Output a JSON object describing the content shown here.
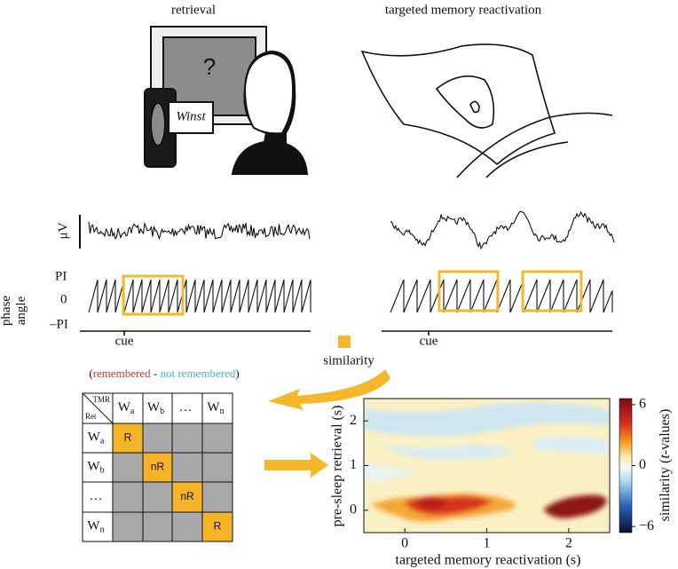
{
  "panels": {
    "retrieval": {
      "title": "retrieval",
      "screen_symbol": "?",
      "word": "Winst"
    },
    "tmr": {
      "title": "targeted memory reactivation"
    }
  },
  "eeg": {
    "amplitude_unit": "μV",
    "phase_label": [
      "phase",
      "angle"
    ],
    "phase_ticks": [
      "PI",
      "0",
      "–PI"
    ],
    "cue_left": "cue",
    "cue_right": "cue"
  },
  "similarity_label": "similarity",
  "legend": {
    "open": "(",
    "remembered": "remembered",
    "separator": " - ",
    "not_remembered": "not remembered",
    "close": ")"
  },
  "matrix": {
    "corner_top": "TMR",
    "corner_bottom": "Ret",
    "columns": [
      {
        "base": "W",
        "sub": "a"
      },
      {
        "base": "W",
        "sub": "b"
      },
      {
        "base": "…"
      },
      {
        "base": "W",
        "sub": "n"
      }
    ],
    "rows": [
      {
        "base": "W",
        "sub": "a"
      },
      {
        "base": "W",
        "sub": "b"
      },
      {
        "base": "…"
      },
      {
        "base": "W",
        "sub": "n"
      }
    ],
    "diagonal": [
      "R",
      "nR",
      "nR",
      "R"
    ]
  },
  "heatmap": {
    "x_label": "targeted memory reactivation (s)",
    "y_label": "pre-sleep retrieval (s)",
    "xlim": [
      -0.5,
      2.5
    ],
    "ylim": [
      -0.5,
      2.5
    ],
    "xticks": [
      0,
      1,
      2
    ],
    "yticks": [
      0,
      1,
      2
    ],
    "colorbar": {
      "lim": [
        -6.6,
        6.6
      ],
      "ticks": [
        6,
        0,
        {
          "value": -6,
          "label": "−6"
        }
      ],
      "label": [
        "similarity (",
        "t",
        "-values)"
      ]
    }
  }
}
